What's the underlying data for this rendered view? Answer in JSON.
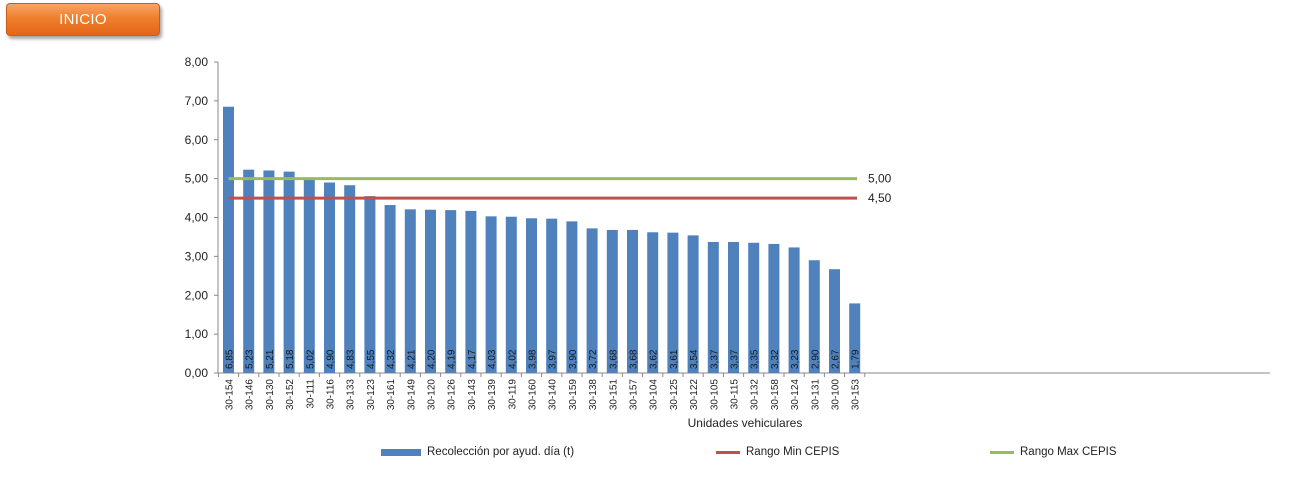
{
  "button": {
    "label": "INICIO"
  },
  "colors": {
    "bar": "#4f81bd",
    "min_line": "#c0504d",
    "max_line": "#9bbb59",
    "button": "#ef7f2c"
  },
  "chart_data": {
    "type": "bar",
    "xlabel": "Unidades vehiculares",
    "ylabel": "",
    "ylim": [
      0,
      8
    ],
    "yticks": [
      "0,00",
      "1,00",
      "2,00",
      "3,00",
      "4,00",
      "5,00",
      "6,00",
      "7,00",
      "8,00"
    ],
    "categories": [
      "30-154",
      "30-146",
      "30-130",
      "30-152",
      "30-111",
      "30-116",
      "30-133",
      "30-123",
      "30-161",
      "30-149",
      "30-120",
      "30-126",
      "30-143",
      "30-139",
      "30-119",
      "30-160",
      "30-140",
      "30-159",
      "30-138",
      "30-151",
      "30-157",
      "30-104",
      "30-125",
      "30-122",
      "30-105",
      "30-115",
      "30-132",
      "30-158",
      "30-124",
      "30-131",
      "30-100",
      "30-153"
    ],
    "series": [
      {
        "name": "Recolección por ayud. día (t)",
        "type": "bar",
        "values": [
          6.85,
          5.23,
          5.21,
          5.18,
          5.02,
          4.9,
          4.83,
          4.55,
          4.32,
          4.21,
          4.2,
          4.19,
          4.17,
          4.03,
          4.02,
          3.98,
          3.97,
          3.9,
          3.72,
          3.68,
          3.68,
          3.62,
          3.61,
          3.54,
          3.37,
          3.37,
          3.35,
          3.32,
          3.23,
          2.9,
          2.67,
          1.79
        ],
        "labels": [
          "6,85",
          "5,23",
          "5,21",
          "5,18",
          "5,02",
          "4,90",
          "4,83",
          "4,55",
          "4,32",
          "4,21",
          "4,20",
          "4,19",
          "4,17",
          "4,03",
          "4,02",
          "3,98",
          "3,97",
          "3,90",
          "3,72",
          "3,68",
          "3,68",
          "3,62",
          "3,61",
          "3,54",
          "3,37",
          "3,37",
          "3,35",
          "3,32",
          "3,23",
          "2,90",
          "2,67",
          "1,79"
        ]
      },
      {
        "name": "Rango Min CEPIS",
        "type": "line",
        "value": 4.5,
        "label": "4,50"
      },
      {
        "name": "Rango Max CEPIS",
        "type": "line",
        "value": 5.0,
        "label": "5,00"
      }
    ],
    "grid": false,
    "legend": "bottom"
  }
}
